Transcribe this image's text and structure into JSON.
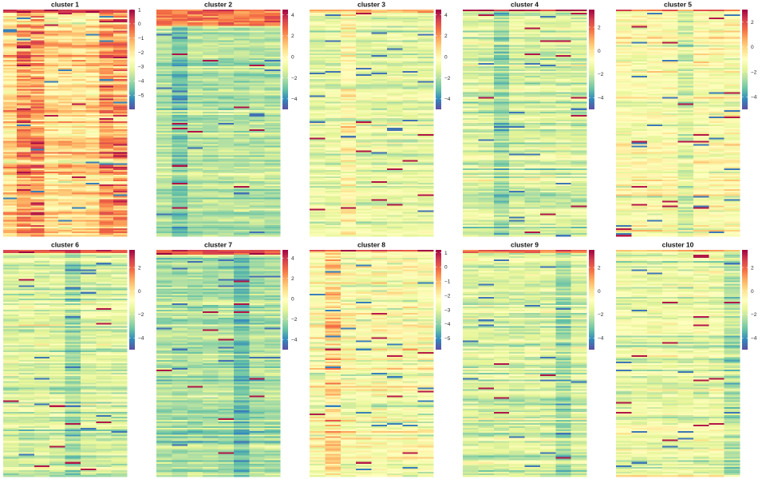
{
  "chart_data": {
    "type": "heatmap",
    "palette": [
      "#5e4fa2",
      "#3288bd",
      "#66c2a5",
      "#abdda4",
      "#e6f598",
      "#ffffbf",
      "#fee08b",
      "#fdae61",
      "#f46d43",
      "#d53e4f",
      "#9e0142"
    ],
    "panels": [
      {
        "title": "cluster 1",
        "n_columns": 9,
        "n_rows": 140,
        "colorbar_range": [
          -6,
          1
        ],
        "colorbar_ticks": [
          1,
          0,
          -1,
          -2,
          -3,
          -4,
          -5
        ],
        "typical_value": -1.8,
        "seed": 11,
        "high_columns": [
          1,
          2,
          7,
          8
        ],
        "low_columns": [],
        "top_rows": 2,
        "top_value": 0.5
      },
      {
        "title": "cluster 2",
        "n_columns": 8,
        "n_rows": 140,
        "colorbar_range": [
          -5,
          4.5
        ],
        "colorbar_ticks": [
          4,
          2,
          0,
          -2,
          -4
        ],
        "typical_value": -1.9,
        "seed": 23,
        "high_columns": [],
        "low_columns": [
          1
        ],
        "top_rows": 10,
        "top_value": 2.5
      },
      {
        "title": "cluster 3",
        "n_columns": 8,
        "n_rows": 140,
        "colorbar_range": [
          -5,
          4.5
        ],
        "colorbar_ticks": [
          4,
          2,
          0,
          -2,
          -4
        ],
        "typical_value": -1.1,
        "seed": 37,
        "high_columns": [
          2
        ],
        "low_columns": [],
        "top_rows": 2,
        "top_value": 1.5
      },
      {
        "title": "cluster 4",
        "n_columns": 8,
        "n_rows": 140,
        "colorbar_range": [
          -5,
          3.5
        ],
        "colorbar_ticks": [
          2,
          0,
          -2,
          -4
        ],
        "typical_value": -1.7,
        "seed": 41,
        "high_columns": [],
        "low_columns": [
          2
        ],
        "top_rows": 1,
        "top_value": 3.2
      },
      {
        "title": "cluster 5",
        "n_columns": 8,
        "n_rows": 140,
        "colorbar_range": [
          -5,
          3
        ],
        "colorbar_ticks": [
          2,
          0,
          -2,
          -4
        ],
        "typical_value": -1.1,
        "seed": 53,
        "high_columns": [],
        "low_columns": [
          4
        ],
        "top_rows": 1,
        "top_value": 1.5
      },
      {
        "title": "cluster 6",
        "n_columns": 8,
        "n_rows": 140,
        "colorbar_range": [
          -5,
          3.5
        ],
        "colorbar_ticks": [
          2,
          0,
          -2,
          -4
        ],
        "typical_value": -1.7,
        "seed": 67,
        "high_columns": [],
        "low_columns": [
          4
        ],
        "top_rows": 2,
        "top_value": 2.5
      },
      {
        "title": "cluster 7",
        "n_columns": 8,
        "n_rows": 140,
        "colorbar_range": [
          -5,
          4.8
        ],
        "colorbar_ticks": [
          4,
          2,
          0,
          -2,
          -4
        ],
        "typical_value": -2.0,
        "seed": 79,
        "high_columns": [],
        "low_columns": [
          5
        ],
        "top_rows": 3,
        "top_value": 3.8
      },
      {
        "title": "cluster 8",
        "n_columns": 8,
        "n_rows": 140,
        "colorbar_range": [
          -5.8,
          1.2
        ],
        "colorbar_ticks": [
          1,
          0,
          -1,
          -2,
          -3,
          -4,
          -5
        ],
        "typical_value": -2.4,
        "seed": 83,
        "high_columns": [
          1
        ],
        "low_columns": [],
        "top_rows": 1,
        "top_value": 0.3
      },
      {
        "title": "cluster 9",
        "n_columns": 8,
        "n_rows": 140,
        "colorbar_range": [
          -5,
          3.5
        ],
        "colorbar_ticks": [
          2,
          0,
          -2,
          -4
        ],
        "typical_value": -1.7,
        "seed": 97,
        "high_columns": [],
        "low_columns": [
          6
        ],
        "top_rows": 2,
        "top_value": 1.8
      },
      {
        "title": "cluster 10",
        "n_columns": 8,
        "n_rows": 140,
        "colorbar_range": [
          -5,
          3.5
        ],
        "colorbar_ticks": [
          2,
          0,
          -2,
          -4
        ],
        "typical_value": -1.3,
        "seed": 101,
        "high_columns": [],
        "low_columns": [
          7
        ],
        "top_rows": 1,
        "top_value": 1.5
      }
    ]
  }
}
